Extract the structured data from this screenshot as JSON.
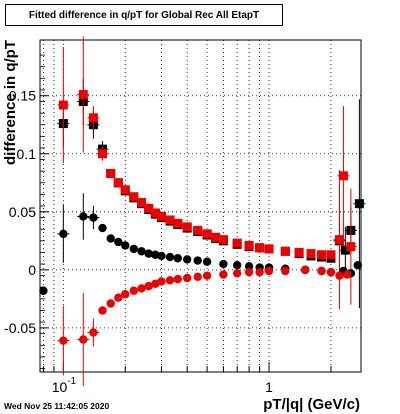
{
  "title": "Fitted difference in q/pT for Global Rec All EtapT",
  "footer_timestamp": "Wed Nov 25 11:42:05 2020",
  "chart_data": {
    "type": "scatter",
    "title": "Fitted difference in q/pT for Global Rec All EtapT",
    "xlabel": "pT/|q| (GeV/c)",
    "ylabel": "difference in q/pT",
    "x_scale": "log",
    "xlim": [
      0.077,
      2.8
    ],
    "ylim": [
      -0.088,
      0.198
    ],
    "grid": true,
    "x_ticks": [
      {
        "value": 0.1,
        "label": "10",
        "exp": "-1"
      },
      {
        "value": 1,
        "label": "1",
        "exp": ""
      }
    ],
    "y_ticks": [
      {
        "value": -0.05,
        "label": "-0.05"
      },
      {
        "value": 0,
        "label": "0"
      },
      {
        "value": 0.05,
        "label": "0.05"
      },
      {
        "value": 0.1,
        "label": "0.1"
      },
      {
        "value": 0.15,
        "label": "0.15"
      }
    ],
    "series": [
      {
        "color": "#000000",
        "marker": "square",
        "points": [
          {
            "x": 0.1,
            "y": 0.126,
            "err": 0.02
          },
          {
            "x": 0.125,
            "y": 0.145,
            "err": 0.02
          },
          {
            "x": 0.14,
            "y": 0.125,
            "err": 0.012
          },
          {
            "x": 0.155,
            "y": 0.104,
            "err": 0.007
          },
          {
            "x": 0.17,
            "y": 0.083
          },
          {
            "x": 0.185,
            "y": 0.075
          },
          {
            "x": 0.2,
            "y": 0.068
          },
          {
            "x": 0.22,
            "y": 0.062
          },
          {
            "x": 0.24,
            "y": 0.057
          },
          {
            "x": 0.26,
            "y": 0.052
          },
          {
            "x": 0.28,
            "y": 0.048
          },
          {
            "x": 0.3,
            "y": 0.045
          },
          {
            "x": 0.33,
            "y": 0.042
          },
          {
            "x": 0.36,
            "y": 0.039
          },
          {
            "x": 0.4,
            "y": 0.036
          },
          {
            "x": 0.45,
            "y": 0.033
          },
          {
            "x": 0.5,
            "y": 0.03
          },
          {
            "x": 0.55,
            "y": 0.027
          },
          {
            "x": 0.6,
            "y": 0.025
          },
          {
            "x": 0.7,
            "y": 0.022
          },
          {
            "x": 0.8,
            "y": 0.02
          },
          {
            "x": 0.9,
            "y": 0.019
          },
          {
            "x": 1.0,
            "y": 0.018
          },
          {
            "x": 1.2,
            "y": 0.016
          },
          {
            "x": 1.4,
            "y": 0.014
          },
          {
            "x": 1.6,
            "y": 0.012
          },
          {
            "x": 1.8,
            "y": 0.011
          },
          {
            "x": 2.0,
            "y": 0.01
          },
          {
            "x": 2.2,
            "y": 0.025,
            "err": 0.03
          },
          {
            "x": 2.35,
            "y": 0.017,
            "err": 0.02
          },
          {
            "x": 2.5,
            "y": 0.034,
            "err": 0.02
          },
          {
            "x": 2.75,
            "y": 0.057,
            "err": 0.09
          }
        ]
      },
      {
        "color": "#ee0000",
        "marker": "square",
        "points": [
          {
            "x": 0.1,
            "y": 0.142,
            "err": 0.05
          },
          {
            "x": 0.125,
            "y": 0.151,
            "err": 0.05
          },
          {
            "x": 0.14,
            "y": 0.131,
            "err": 0.01
          },
          {
            "x": 0.155,
            "y": 0.1,
            "err": 0.006
          },
          {
            "x": 0.17,
            "y": 0.083
          },
          {
            "x": 0.185,
            "y": 0.075
          },
          {
            "x": 0.2,
            "y": 0.069
          },
          {
            "x": 0.22,
            "y": 0.063
          },
          {
            "x": 0.24,
            "y": 0.058
          },
          {
            "x": 0.26,
            "y": 0.053
          },
          {
            "x": 0.28,
            "y": 0.049
          },
          {
            "x": 0.3,
            "y": 0.046
          },
          {
            "x": 0.33,
            "y": 0.043
          },
          {
            "x": 0.36,
            "y": 0.04
          },
          {
            "x": 0.4,
            "y": 0.037
          },
          {
            "x": 0.45,
            "y": 0.034
          },
          {
            "x": 0.5,
            "y": 0.031
          },
          {
            "x": 0.55,
            "y": 0.028
          },
          {
            "x": 0.6,
            "y": 0.026
          },
          {
            "x": 0.7,
            "y": 0.023
          },
          {
            "x": 0.8,
            "y": 0.021
          },
          {
            "x": 0.9,
            "y": 0.019
          },
          {
            "x": 1.0,
            "y": 0.018
          },
          {
            "x": 1.2,
            "y": 0.016
          },
          {
            "x": 1.4,
            "y": 0.015
          },
          {
            "x": 1.6,
            "y": 0.014
          },
          {
            "x": 1.8,
            "y": 0.013
          },
          {
            "x": 2.0,
            "y": 0.013
          },
          {
            "x": 2.2,
            "y": 0.026,
            "err": 0.06
          },
          {
            "x": 2.3,
            "y": 0.081,
            "err": 0.06
          },
          {
            "x": 2.5,
            "y": 0.02,
            "err": 0.05
          }
        ]
      },
      {
        "color": "#000000",
        "marker": "circle",
        "points": [
          {
            "x": 0.08,
            "y": -0.018
          },
          {
            "x": 0.1,
            "y": 0.031,
            "err": 0.025
          },
          {
            "x": 0.125,
            "y": 0.046,
            "err": 0.02
          },
          {
            "x": 0.14,
            "y": 0.045,
            "err": 0.01
          },
          {
            "x": 0.155,
            "y": 0.036
          },
          {
            "x": 0.17,
            "y": 0.027
          },
          {
            "x": 0.185,
            "y": 0.024
          },
          {
            "x": 0.2,
            "y": 0.021
          },
          {
            "x": 0.22,
            "y": 0.018
          },
          {
            "x": 0.24,
            "y": 0.016
          },
          {
            "x": 0.26,
            "y": 0.014
          },
          {
            "x": 0.28,
            "y": 0.013
          },
          {
            "x": 0.3,
            "y": 0.012
          },
          {
            "x": 0.33,
            "y": 0.011
          },
          {
            "x": 0.36,
            "y": 0.01
          },
          {
            "x": 0.4,
            "y": 0.009
          },
          {
            "x": 0.45,
            "y": 0.008
          },
          {
            "x": 0.5,
            "y": 0.007
          },
          {
            "x": 0.6,
            "y": 0.005
          },
          {
            "x": 0.7,
            "y": 0.004
          },
          {
            "x": 0.8,
            "y": 0.003
          },
          {
            "x": 0.9,
            "y": 0.002
          },
          {
            "x": 1.0,
            "y": 0.002
          },
          {
            "x": 1.2,
            "y": 0.001
          },
          {
            "x": 1.5,
            "y": 0.0
          },
          {
            "x": 1.8,
            "y": -0.001
          },
          {
            "x": 2.0,
            "y": -0.002
          },
          {
            "x": 2.3,
            "y": -0.001
          },
          {
            "x": 2.5,
            "y": -0.003
          },
          {
            "x": 2.7,
            "y": 0.004
          }
        ]
      },
      {
        "color": "#ee0000",
        "marker": "circle",
        "points": [
          {
            "x": 0.1,
            "y": -0.061,
            "err": 0.03
          },
          {
            "x": 0.125,
            "y": -0.06,
            "err": 0.04
          },
          {
            "x": 0.14,
            "y": -0.054,
            "err": 0.012
          },
          {
            "x": 0.155,
            "y": -0.035
          },
          {
            "x": 0.17,
            "y": -0.029
          },
          {
            "x": 0.185,
            "y": -0.024
          },
          {
            "x": 0.2,
            "y": -0.021
          },
          {
            "x": 0.22,
            "y": -0.018
          },
          {
            "x": 0.24,
            "y": -0.016
          },
          {
            "x": 0.26,
            "y": -0.014
          },
          {
            "x": 0.28,
            "y": -0.012
          },
          {
            "x": 0.3,
            "y": -0.01
          },
          {
            "x": 0.33,
            "y": -0.009
          },
          {
            "x": 0.36,
            "y": -0.008
          },
          {
            "x": 0.4,
            "y": -0.007
          },
          {
            "x": 0.45,
            "y": -0.006
          },
          {
            "x": 0.5,
            "y": -0.005
          },
          {
            "x": 0.6,
            "y": -0.004
          },
          {
            "x": 0.7,
            "y": -0.003
          },
          {
            "x": 0.8,
            "y": -0.002
          },
          {
            "x": 0.9,
            "y": -0.002
          },
          {
            "x": 1.0,
            "y": -0.001
          },
          {
            "x": 1.2,
            "y": -0.001
          },
          {
            "x": 1.5,
            "y": 0.0
          },
          {
            "x": 1.8,
            "y": -0.001
          },
          {
            "x": 2.0,
            "y": -0.002
          },
          {
            "x": 2.2,
            "y": -0.005
          },
          {
            "x": 2.4,
            "y": -0.004
          }
        ]
      }
    ]
  }
}
